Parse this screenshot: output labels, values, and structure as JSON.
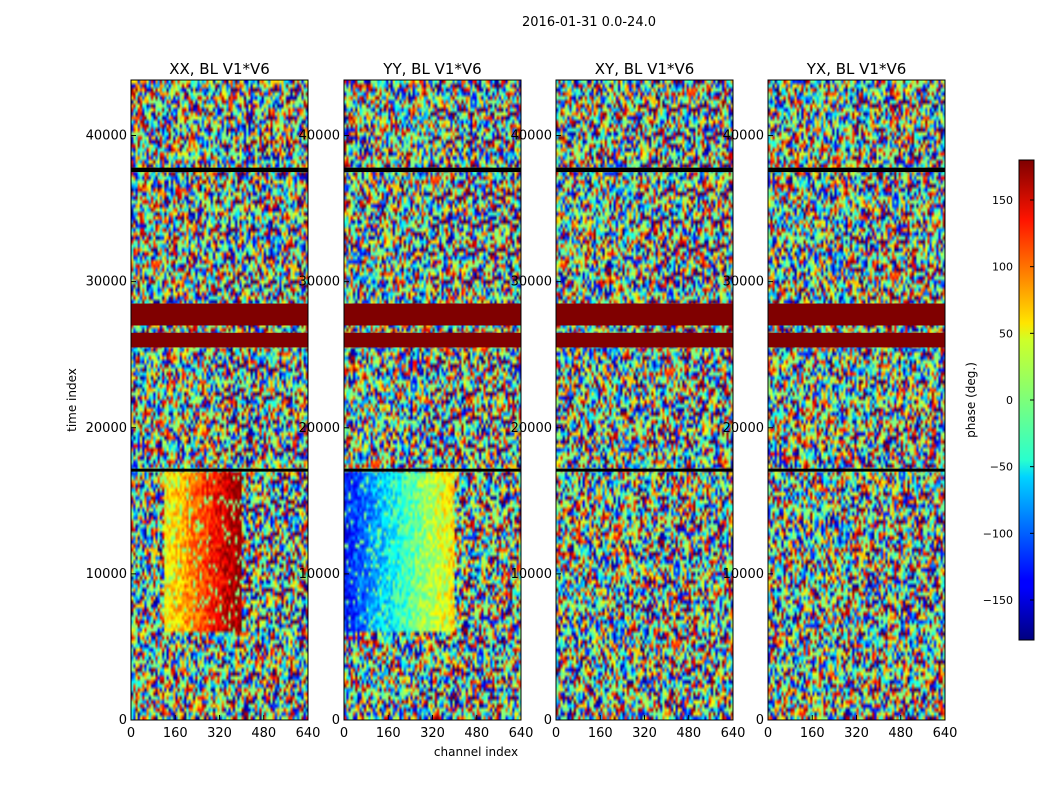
{
  "figure": {
    "suptitle": "2016-01-31 0.0-24.0",
    "xlabel": "channel index",
    "ylabel": "time index"
  },
  "chart_data": {
    "type": "heatmap",
    "title": "2016-01-31 0.0-24.0",
    "xlabel": "channel index",
    "ylabel": "time index",
    "xlim": [
      0,
      640
    ],
    "ylim": [
      0,
      43800
    ],
    "xticks": [
      0,
      160,
      320,
      480,
      640
    ],
    "yticks": [
      0,
      10000,
      20000,
      30000,
      40000
    ],
    "panels": [
      {
        "title": "XX, BL V1*V6",
        "polarization": "XX",
        "baseline": "V1*V6",
        "coherent_band_channels": [
          120,
          400
        ],
        "band_phase_deg": [
          40,
          180
        ]
      },
      {
        "title": "YY, BL V1*V6",
        "polarization": "YY",
        "baseline": "V1*V6",
        "coherent_band_channels": [
          0,
          400
        ],
        "band_phase_deg": [
          -130,
          60
        ]
      },
      {
        "title": "XY, BL V1*V6",
        "polarization": "XY",
        "baseline": "V1*V6",
        "coherent_band_channels": null,
        "band_phase_deg": null
      },
      {
        "title": "YX, BL V1*V6",
        "polarization": "YX",
        "baseline": "V1*V6",
        "coherent_band_channels": null,
        "band_phase_deg": null
      }
    ],
    "flagged_time_bands": [
      {
        "start": 27000,
        "end": 28500,
        "value_deg": 180
      },
      {
        "start": 25500,
        "end": 26500,
        "value_deg": 180
      },
      {
        "start": 17000,
        "end": 17200,
        "value_deg": null
      },
      {
        "start": 37500,
        "end": 37800,
        "value_deg": null
      }
    ],
    "colorbar": {
      "label": "phase (deg.)",
      "range": [
        -180,
        180
      ],
      "ticks": [
        -150,
        -100,
        -50,
        0,
        50,
        100,
        150
      ],
      "tick_labels": [
        "−150",
        "−100",
        "−50",
        "0",
        "50",
        "100",
        "150"
      ],
      "colormap": "jet"
    }
  }
}
